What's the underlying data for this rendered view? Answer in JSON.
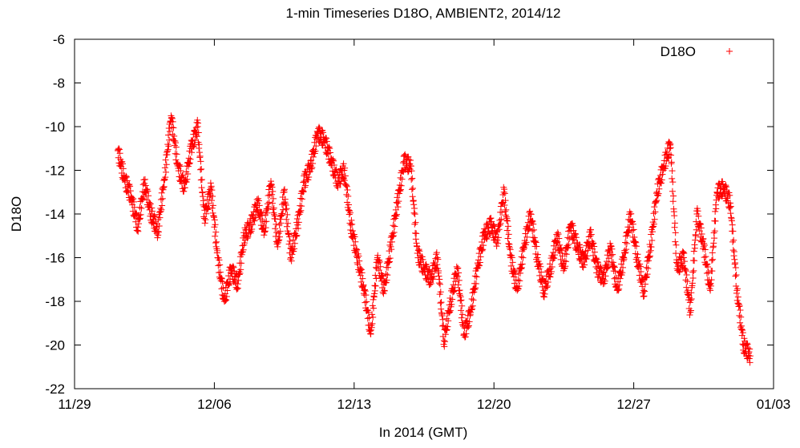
{
  "chart_data": {
    "type": "scatter",
    "title": "1-min Timeseries D18O, AMBIENT2, 2014/12",
    "xlabel": "In 2014 (GMT)",
    "ylabel": "D18O",
    "xlim": [
      "2014-11-29",
      "2015-01-03"
    ],
    "ylim": [
      -22,
      -6
    ],
    "x_ticks": [
      "11/29",
      "12/06",
      "12/13",
      "12/20",
      "12/27",
      "01/03"
    ],
    "y_ticks": [
      "-6",
      "-8",
      "-10",
      "-12",
      "-14",
      "-16",
      "-18",
      "-20",
      "-22"
    ],
    "grid": false,
    "legend_position": "top-right",
    "series": [
      {
        "name": "D18O",
        "color": "#ff0000",
        "marker": "plus",
        "points": [
          [
            "2014-12-01",
            -11.1
          ],
          [
            "2014-12-01",
            -12.4
          ],
          [
            "2014-12-01",
            -13.2
          ],
          [
            "2014-12-02",
            -14.6
          ],
          [
            "2014-12-02",
            -12.6
          ],
          [
            "2014-12-02",
            -14.0
          ],
          [
            "2014-12-03",
            -14.8
          ],
          [
            "2014-12-03",
            -12.4
          ],
          [
            "2014-12-03",
            -9.5
          ],
          [
            "2014-12-04",
            -11.8
          ],
          [
            "2014-12-04",
            -12.8
          ],
          [
            "2014-12-04",
            -11.0
          ],
          [
            "2014-12-05",
            -10.0
          ],
          [
            "2014-12-05",
            -14.2
          ],
          [
            "2014-12-05",
            -12.8
          ],
          [
            "2014-12-06",
            -16.0
          ],
          [
            "2014-12-06",
            -18.0
          ],
          [
            "2014-12-06",
            -16.5
          ],
          [
            "2014-12-07",
            -17.2
          ],
          [
            "2014-12-07",
            -15.0
          ],
          [
            "2014-12-07",
            -14.5
          ],
          [
            "2014-12-08",
            -13.5
          ],
          [
            "2014-12-08",
            -14.8
          ],
          [
            "2014-12-08",
            -12.5
          ],
          [
            "2014-12-09",
            -15.5
          ],
          [
            "2014-12-09",
            -13.0
          ],
          [
            "2014-12-09",
            -16.0
          ],
          [
            "2014-12-10",
            -14.5
          ],
          [
            "2014-12-10",
            -12.5
          ],
          [
            "2014-12-10",
            -11.8
          ],
          [
            "2014-12-11",
            -10.3
          ],
          [
            "2014-12-11",
            -10.6
          ],
          [
            "2014-12-11",
            -11.5
          ],
          [
            "2014-12-12",
            -12.5
          ],
          [
            "2014-12-12",
            -12.0
          ],
          [
            "2014-12-12",
            -14.5
          ],
          [
            "2014-12-13",
            -16.0
          ],
          [
            "2014-12-13",
            -17.5
          ],
          [
            "2014-12-13",
            -19.5
          ],
          [
            "2014-12-14",
            -16.0
          ],
          [
            "2014-12-14",
            -17.5
          ],
          [
            "2014-12-14",
            -15.5
          ],
          [
            "2014-12-15",
            -13.5
          ],
          [
            "2014-12-15",
            -11.6
          ],
          [
            "2014-12-15",
            -11.8
          ],
          [
            "2014-12-16",
            -15.8
          ],
          [
            "2014-12-16",
            -16.5
          ],
          [
            "2014-12-16",
            -17.0
          ],
          [
            "2014-12-17",
            -16.0
          ],
          [
            "2014-12-17",
            -19.8
          ],
          [
            "2014-12-17",
            -18.0
          ],
          [
            "2014-12-18",
            -16.5
          ],
          [
            "2014-12-18",
            -19.5
          ],
          [
            "2014-12-18",
            -18.5
          ],
          [
            "2014-12-19",
            -16.5
          ],
          [
            "2014-12-19",
            -15.0
          ],
          [
            "2014-12-19",
            -14.5
          ],
          [
            "2014-12-20",
            -15.2
          ],
          [
            "2014-12-20",
            -13.0
          ],
          [
            "2014-12-20",
            -16.0
          ],
          [
            "2014-12-21",
            -17.5
          ],
          [
            "2014-12-21",
            -15.5
          ],
          [
            "2014-12-21",
            -14.0
          ],
          [
            "2014-12-22",
            -16.0
          ],
          [
            "2014-12-22",
            -17.5
          ],
          [
            "2014-12-22",
            -16.5
          ],
          [
            "2014-12-23",
            -15.0
          ],
          [
            "2014-12-23",
            -16.5
          ],
          [
            "2014-12-23",
            -14.5
          ],
          [
            "2014-12-24",
            -15.5
          ],
          [
            "2014-12-24",
            -16.2
          ],
          [
            "2014-12-24",
            -15.0
          ],
          [
            "2014-12-25",
            -16.5
          ],
          [
            "2014-12-25",
            -17.0
          ],
          [
            "2014-12-25",
            -15.5
          ],
          [
            "2014-12-26",
            -17.5
          ],
          [
            "2014-12-26",
            -16.0
          ],
          [
            "2014-12-26",
            -14.0
          ],
          [
            "2014-12-27",
            -16.0
          ],
          [
            "2014-12-27",
            -17.5
          ],
          [
            "2014-12-27",
            -15.5
          ],
          [
            "2014-12-28",
            -13.0
          ],
          [
            "2014-12-28",
            -11.8
          ],
          [
            "2014-12-28",
            -10.8
          ],
          [
            "2014-12-29",
            -16.5
          ],
          [
            "2014-12-29",
            -16.0
          ],
          [
            "2014-12-29",
            -18.5
          ],
          [
            "2014-12-30",
            -14.0
          ],
          [
            "2014-12-30",
            -15.5
          ],
          [
            "2014-12-30",
            -17.5
          ],
          [
            "2014-12-31",
            -13.0
          ],
          [
            "2014-12-31",
            -12.8
          ],
          [
            "2014-12-31",
            -13.5
          ],
          [
            "2015-01-01",
            -17.5
          ],
          [
            "2015-01-01",
            -20.0
          ],
          [
            "2015-01-01",
            -20.5
          ]
        ]
      }
    ]
  }
}
